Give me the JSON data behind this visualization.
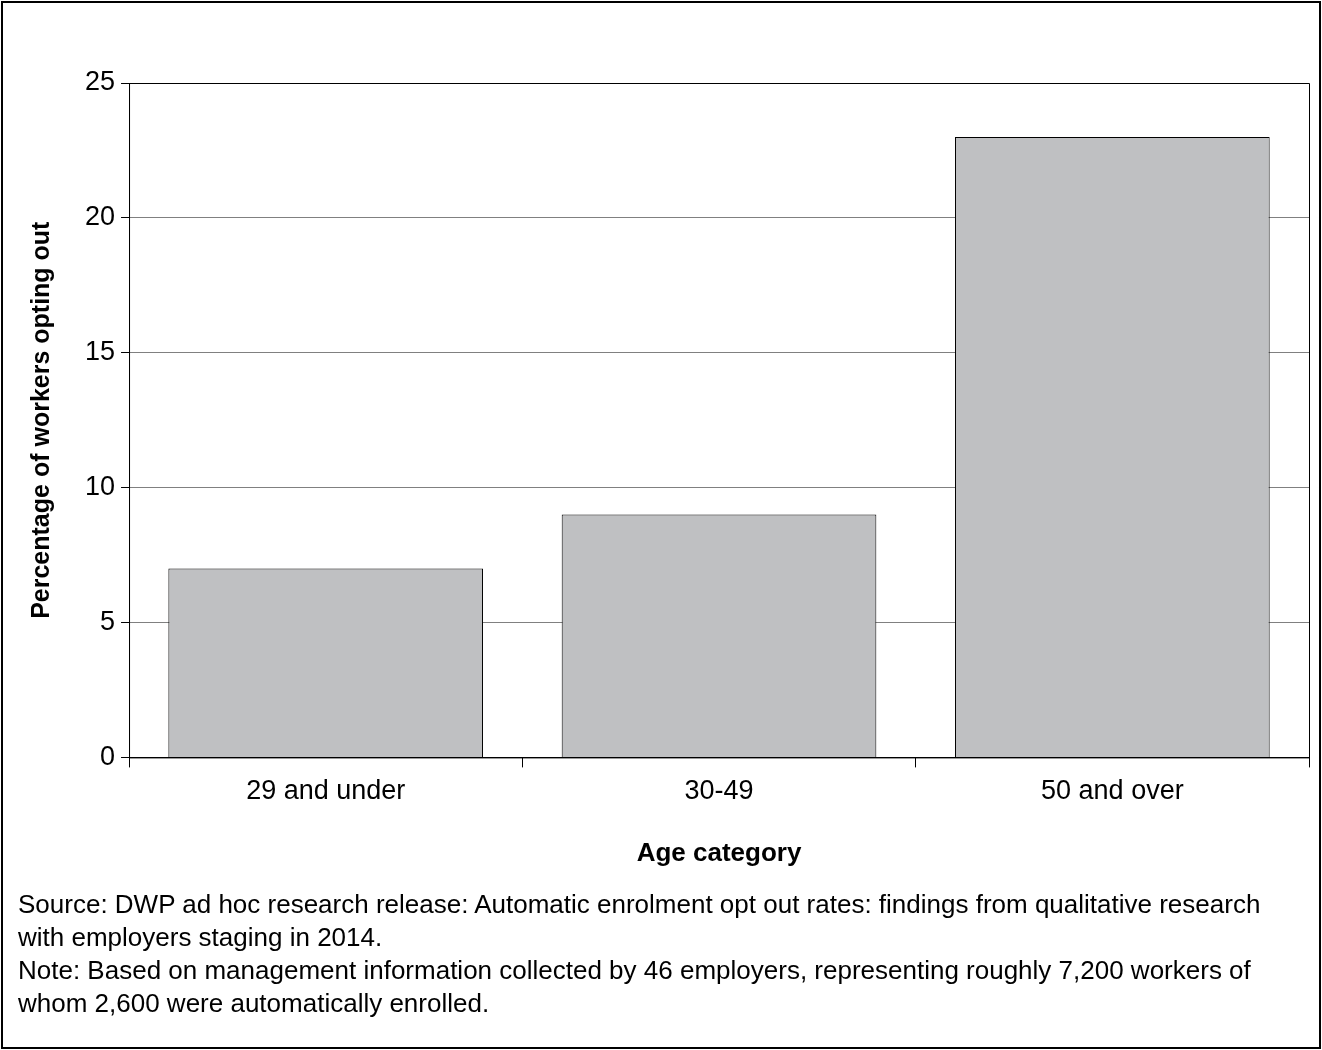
{
  "chart_data": {
    "type": "bar",
    "categories": [
      "29 and under",
      "30-49",
      "50 and over"
    ],
    "values": [
      7,
      9,
      23
    ],
    "color": "#bfc0c2",
    "xlabel": "Age category",
    "ylabel": "Percentage of workers opting out",
    "ylim": [
      0,
      25
    ],
    "yticks": [
      0,
      5,
      10,
      15,
      20,
      25
    ],
    "grid": "y",
    "legend": false,
    "annotations": [
      "Source: DWP ad hoc research release: Automatic enrolment opt out rates: findings from qualitative research with employers staging in 2014.",
      "Note: Based on management information collected by 46 employers, representing roughly 7,200 workers of whom 2,600 were automatically enrolled."
    ]
  }
}
